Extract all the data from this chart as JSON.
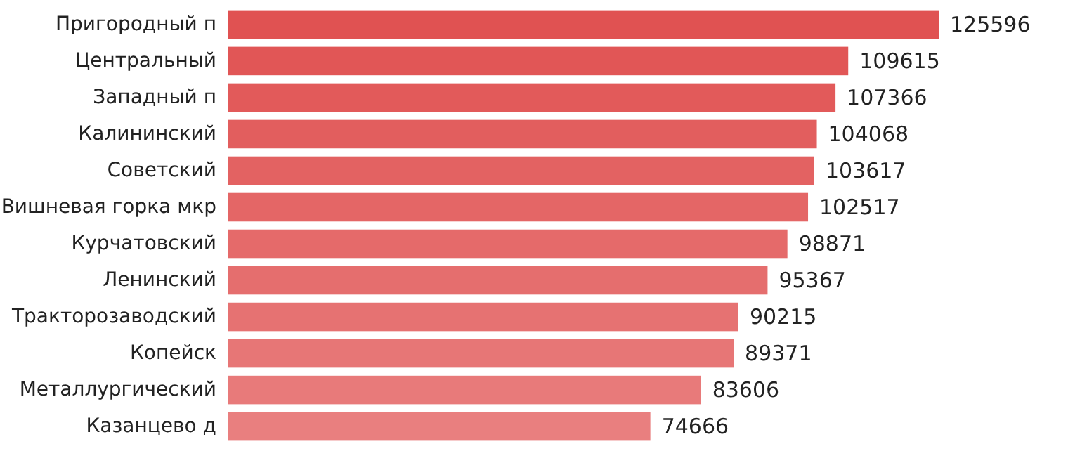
{
  "chart_data": {
    "type": "bar",
    "orientation": "horizontal",
    "data_labels": true,
    "categories": [
      "Пригородный п",
      "Центральный",
      "Западный п",
      "Калининский",
      "Советский",
      "Вишневая горка мкр",
      "Курчатовский",
      "Ленинский",
      "Тракторозаводский",
      "Копейск",
      "Металлургический",
      "Казанцево д"
    ],
    "values": [
      125596,
      109615,
      107366,
      104068,
      103617,
      102517,
      98871,
      95367,
      90215,
      89371,
      83606,
      74666
    ],
    "colors": [
      "#e05252",
      "#e15656",
      "#e25a5a",
      "#e25e5e",
      "#e36262",
      "#e46666",
      "#e56a6a",
      "#e56e6e",
      "#e67272",
      "#e77676",
      "#e87a7a",
      "#e97f7f"
    ]
  }
}
